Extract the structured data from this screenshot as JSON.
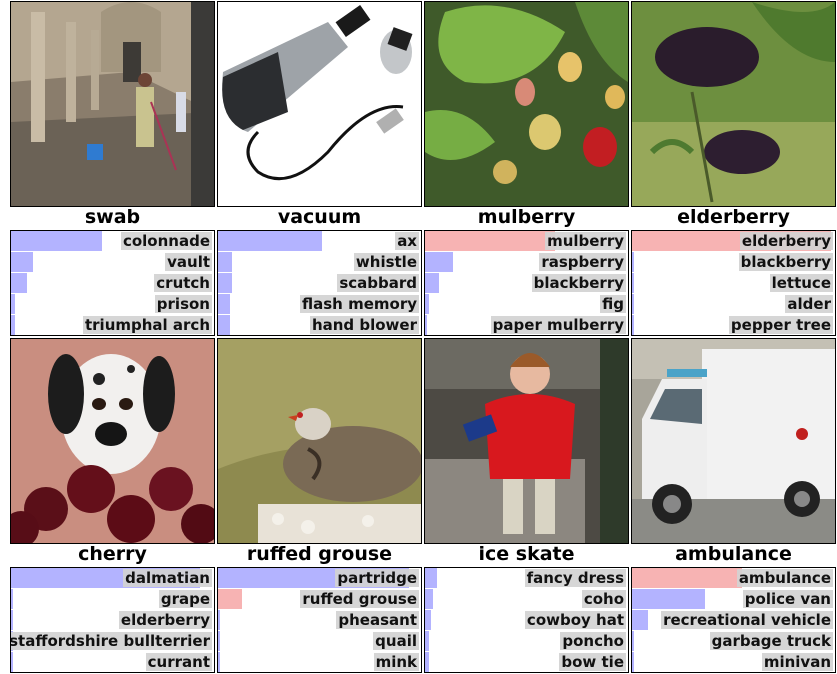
{
  "colors": {
    "bar_default": "#b3b3ff",
    "bar_correct": "#f7b3b3",
    "label_bg": "#d2d2d2"
  },
  "cells": [
    {
      "title": "swab",
      "image": "colonnade-mopping-photo",
      "preds": [
        {
          "label": "colonnade",
          "score": 0.45,
          "correct": false
        },
        {
          "label": "vault",
          "score": 0.11,
          "correct": false
        },
        {
          "label": "crutch",
          "score": 0.08,
          "correct": false
        },
        {
          "label": "prison",
          "score": 0.02,
          "correct": false
        },
        {
          "label": "triumphal arch",
          "score": 0.02,
          "correct": false
        }
      ]
    },
    {
      "title": "vacuum",
      "image": "usb-vacuum-photo",
      "preds": [
        {
          "label": "ax",
          "score": 0.51,
          "correct": false
        },
        {
          "label": "whistle",
          "score": 0.07,
          "correct": false
        },
        {
          "label": "scabbard",
          "score": 0.07,
          "correct": false
        },
        {
          "label": "flash memory",
          "score": 0.06,
          "correct": false
        },
        {
          "label": "hand blower",
          "score": 0.06,
          "correct": false
        }
      ]
    },
    {
      "title": "mulberry",
      "image": "mulberry-photo",
      "preds": [
        {
          "label": "mulberry",
          "score": 0.64,
          "correct": true
        },
        {
          "label": "raspberry",
          "score": 0.14,
          "correct": false
        },
        {
          "label": "blackberry",
          "score": 0.07,
          "correct": false
        },
        {
          "label": "fig",
          "score": 0.02,
          "correct": false
        },
        {
          "label": "paper mulberry",
          "score": 0.01,
          "correct": false
        }
      ]
    },
    {
      "title": "elderberry",
      "image": "elderberry-photo",
      "preds": [
        {
          "label": "elderberry",
          "score": 0.98,
          "correct": true
        },
        {
          "label": "blackberry",
          "score": 0.0,
          "correct": false
        },
        {
          "label": "lettuce",
          "score": 0.0,
          "correct": false
        },
        {
          "label": "alder",
          "score": 0.0,
          "correct": false
        },
        {
          "label": "pepper tree",
          "score": 0.0,
          "correct": false
        }
      ]
    },
    {
      "title": "cherry",
      "image": "dalmatian-cherries-photo",
      "preds": [
        {
          "label": "dalmatian",
          "score": 0.93,
          "correct": false
        },
        {
          "label": "grape",
          "score": 0.01,
          "correct": false
        },
        {
          "label": "elderberry",
          "score": 0.0,
          "correct": false
        },
        {
          "label": "staffordshire bullterrier",
          "score": 0.0,
          "correct": false
        },
        {
          "label": "currant",
          "score": 0.0,
          "correct": false
        }
      ]
    },
    {
      "title": "ruffed grouse",
      "image": "partridge-photo",
      "preds": [
        {
          "label": "partridge",
          "score": 0.94,
          "correct": false
        },
        {
          "label": "ruffed grouse",
          "score": 0.12,
          "correct": true
        },
        {
          "label": "pheasant",
          "score": 0.0,
          "correct": false
        },
        {
          "label": "quail",
          "score": 0.0,
          "correct": false
        },
        {
          "label": "mink",
          "score": 0.0,
          "correct": false
        }
      ]
    },
    {
      "title": "ice skate",
      "image": "child-red-jacket-photo",
      "preds": [
        {
          "label": "fancy dress",
          "score": 0.06,
          "correct": false
        },
        {
          "label": "coho",
          "score": 0.04,
          "correct": false
        },
        {
          "label": "cowboy hat",
          "score": 0.03,
          "correct": false
        },
        {
          "label": "poncho",
          "score": 0.02,
          "correct": false
        },
        {
          "label": "bow tie",
          "score": 0.02,
          "correct": false
        }
      ]
    },
    {
      "title": "ambulance",
      "image": "ambulance-photo",
      "preds": [
        {
          "label": "ambulance",
          "score": 0.54,
          "correct": true
        },
        {
          "label": "police van",
          "score": 0.36,
          "correct": false
        },
        {
          "label": "recreational vehicle",
          "score": 0.08,
          "correct": false
        },
        {
          "label": "garbage truck",
          "score": 0.01,
          "correct": false
        },
        {
          "label": "minivan",
          "score": 0.0,
          "correct": false
        }
      ]
    }
  ]
}
